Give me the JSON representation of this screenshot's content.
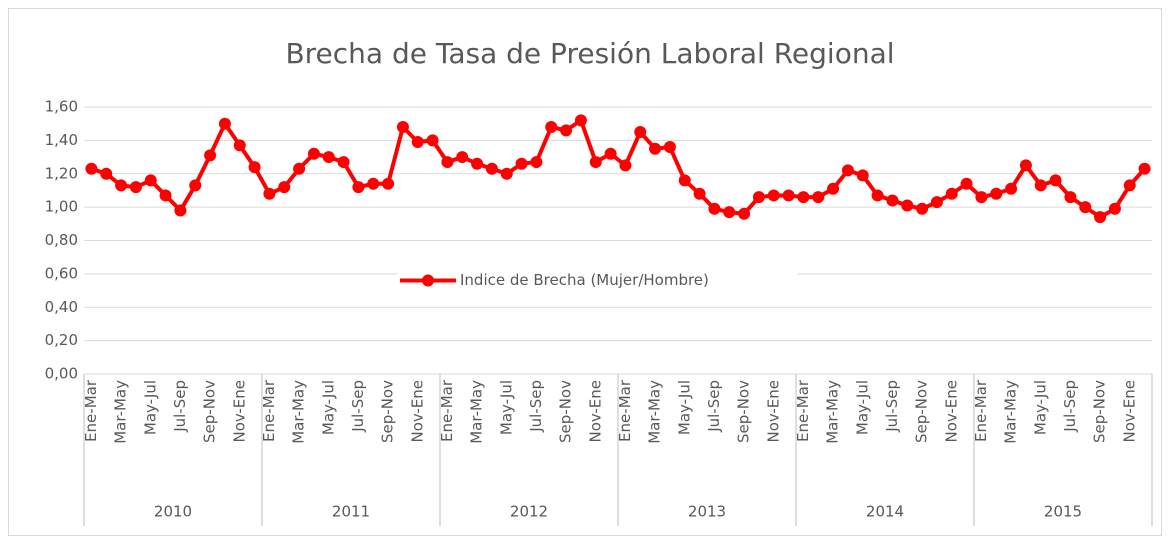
{
  "chart_data": {
    "type": "line",
    "title": "Brecha de Tasa de Presión Laboral Regional",
    "categories": [
      "Ene-Mar",
      null,
      "Mar-May",
      null,
      "May-Jul",
      null,
      "Jul-Sep",
      null,
      "Sep-Nov",
      null,
      "Nov-Ene",
      null,
      "Ene-Mar",
      null,
      "Mar-May",
      null,
      "May-Jul",
      null,
      "Jul-Sep",
      null,
      "Sep-Nov",
      null,
      "Nov-Ene",
      null,
      "Ene-Mar",
      null,
      "Mar-May",
      null,
      "May-Jul",
      null,
      "Jul-Sep",
      null,
      "Sep-Nov",
      null,
      "Nov-Ene",
      null,
      "Ene-Mar",
      null,
      "Mar-May",
      null,
      "May-Jul",
      null,
      "Jul-Sep",
      null,
      "Sep-Nov",
      null,
      "Nov-Ene",
      null,
      "Ene-Mar",
      null,
      "Mar-May",
      null,
      "May-Jul",
      null,
      "Jul-Sep",
      null,
      "Sep-Nov",
      null,
      "Nov-Ene",
      null,
      "Ene-Mar",
      null,
      "Mar-May",
      null,
      "May-Jul",
      null,
      "Jul-Sep",
      null,
      "Sep-Nov",
      null,
      "Nov-Ene",
      null
    ],
    "groups": [
      "2010",
      "2011",
      "2012",
      "2013",
      "2014",
      "2015"
    ],
    "series": [
      {
        "name": "Indice de Brecha (Mujer/Hombre)",
        "color": "#ff0000",
        "values": [
          1.23,
          1.2,
          1.13,
          1.12,
          1.16,
          1.07,
          0.98,
          1.13,
          1.31,
          1.5,
          1.37,
          1.24,
          1.08,
          1.12,
          1.23,
          1.32,
          1.3,
          1.27,
          1.12,
          1.14,
          1.14,
          1.48,
          1.39,
          1.4,
          1.27,
          1.3,
          1.26,
          1.23,
          1.2,
          1.26,
          1.27,
          1.48,
          1.46,
          1.52,
          1.27,
          1.32,
          1.25,
          1.45,
          1.35,
          1.36,
          1.16,
          1.08,
          0.99,
          0.97,
          0.96,
          1.06,
          1.07,
          1.07,
          1.06,
          1.06,
          1.11,
          1.22,
          1.19,
          1.07,
          1.04,
          1.01,
          0.99,
          1.03,
          1.08,
          1.14,
          1.06,
          1.08,
          1.11,
          1.25,
          1.13,
          1.16,
          1.06,
          1.0,
          0.94,
          0.99,
          1.13,
          1.23
        ]
      }
    ],
    "ylim": [
      0,
      1.6
    ],
    "yticks": [
      {
        "value": 0,
        "label": "0,00"
      },
      {
        "value": 0.2,
        "label": "0,20"
      },
      {
        "value": 0.4,
        "label": "0,40"
      },
      {
        "value": 0.6,
        "label": "0,60"
      },
      {
        "value": 0.8,
        "label": "0,80"
      },
      {
        "value": 1.0,
        "label": "1,00"
      },
      {
        "value": 1.2,
        "label": "1,20"
      },
      {
        "value": 1.4,
        "label": "1,40"
      },
      {
        "value": 1.6,
        "label": "1,60"
      }
    ],
    "grid": true,
    "legend": "center"
  }
}
